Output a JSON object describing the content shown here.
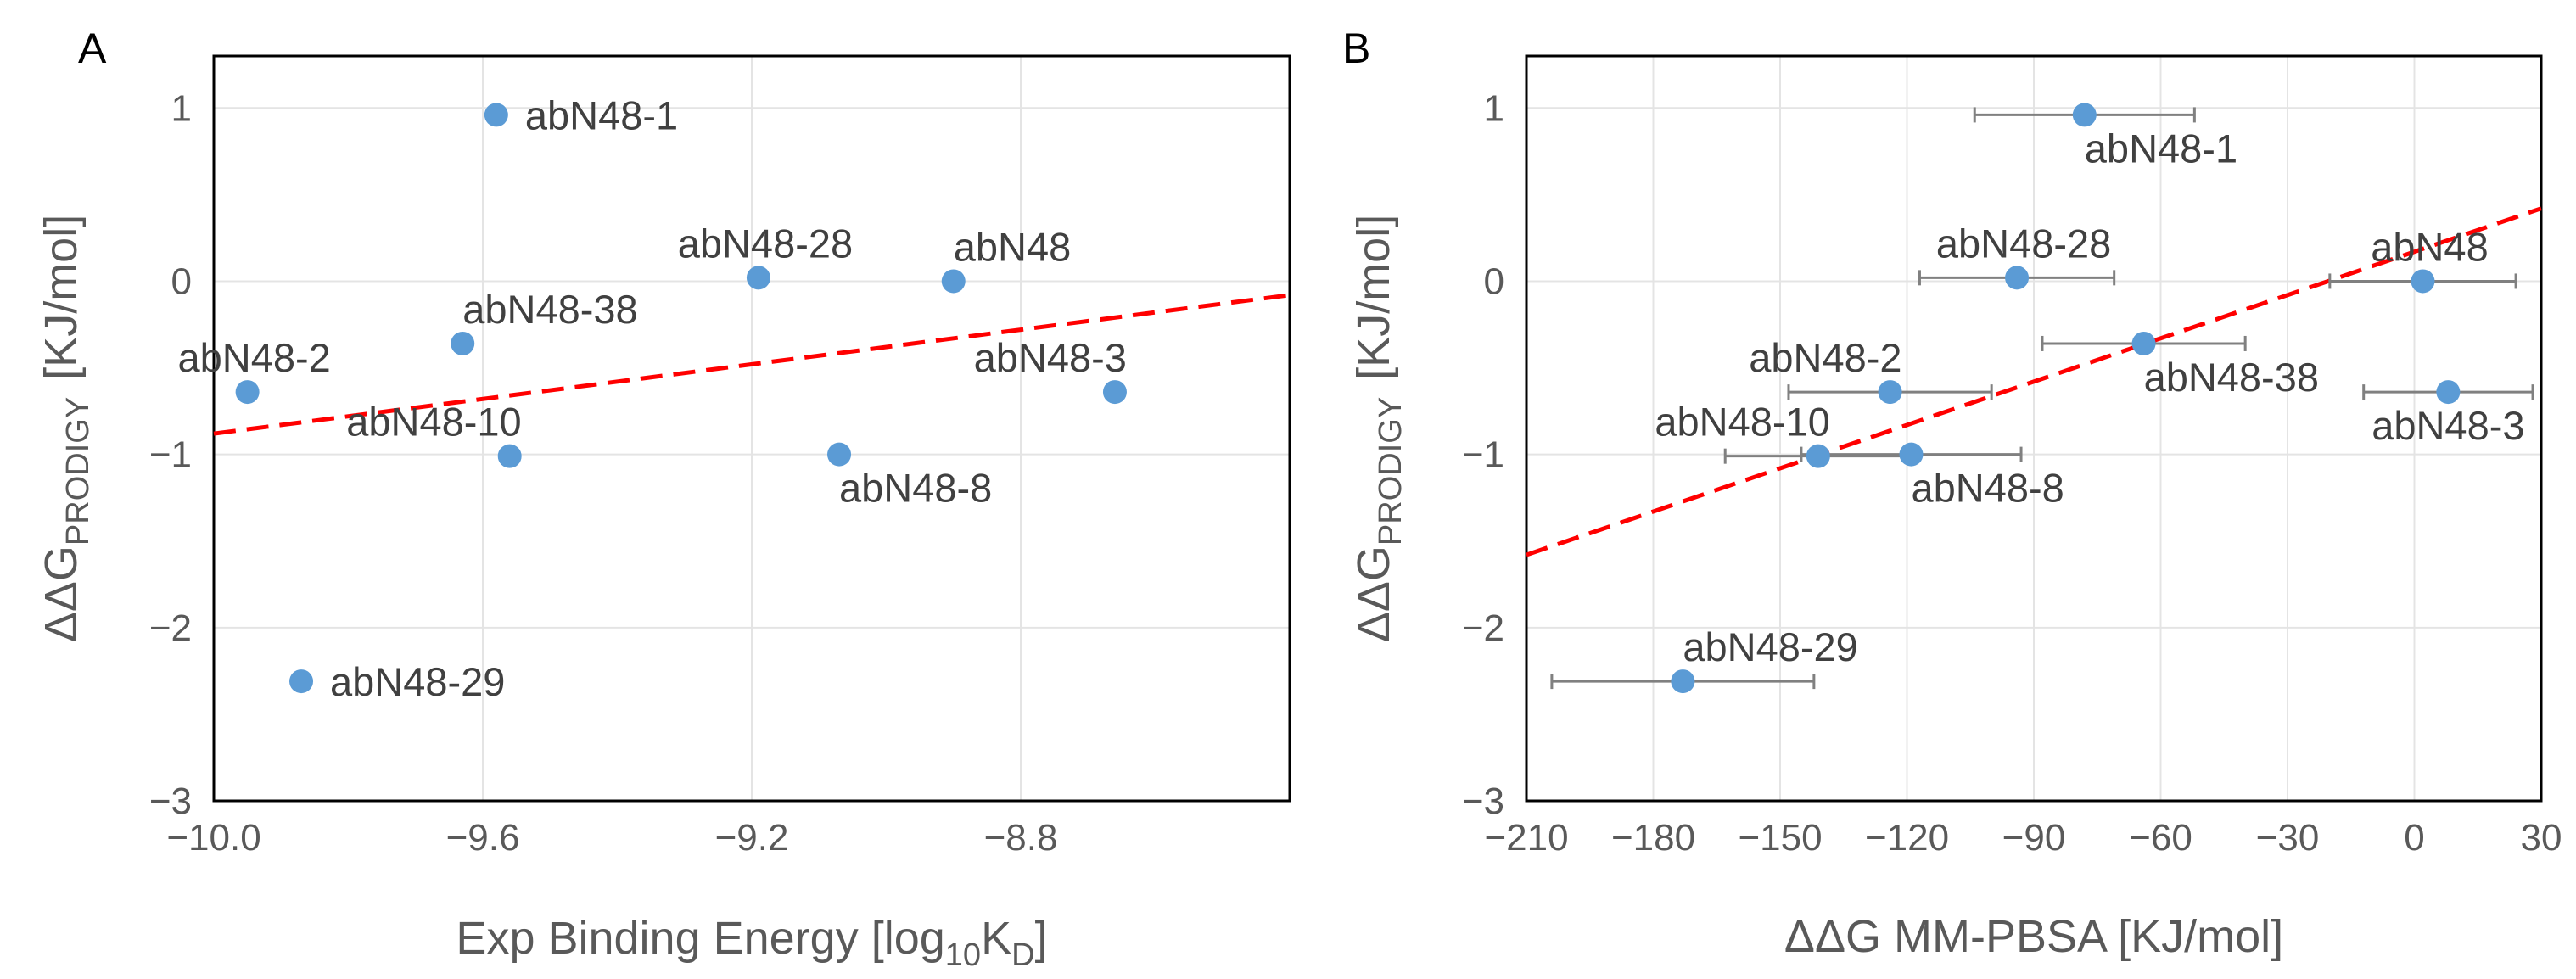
{
  "chart_data": [
    {
      "panel": "A",
      "type": "scatter",
      "xlabel": "Exp Binding Energy [log10KD]",
      "xlabel_parts": {
        "main": "Exp Binding Energy [log",
        "sub1": "10",
        "mid": "K",
        "sub2": "D",
        "end": "]"
      },
      "ylabel": "ΔΔGPRODIGY [KJ/mol]",
      "ylabel_parts": {
        "main": "ΔΔG",
        "sub": "PRODIGY",
        "unit": "[KJ/mol]"
      },
      "xlim": [
        -10.0,
        -8.4
      ],
      "ylim": [
        -3,
        1.3
      ],
      "xticks": [
        -10.0,
        -9.6,
        -9.2,
        -8.8
      ],
      "xtick_labels": [
        "−10.0",
        "−9.6",
        "−9.2",
        "−8.8"
      ],
      "yticks": [
        -3,
        -2,
        -1,
        0,
        1
      ],
      "ytick_labels": [
        "−3",
        "−2",
        "−1",
        "0",
        "1"
      ],
      "grid": true,
      "points": [
        {
          "label": "abN48-1",
          "x": -9.58,
          "y": 0.96,
          "label_pos": "right"
        },
        {
          "label": "abN48-28",
          "x": -9.19,
          "y": 0.02,
          "label_pos": "above"
        },
        {
          "label": "abN48",
          "x": -8.9,
          "y": 0.0,
          "label_pos": "above-right"
        },
        {
          "label": "abN48-38",
          "x": -9.63,
          "y": -0.36,
          "label_pos": "above-right"
        },
        {
          "label": "abN48-2",
          "x": -9.95,
          "y": -0.64,
          "label_pos": "above"
        },
        {
          "label": "abN48-3",
          "x": -8.66,
          "y": -0.64,
          "label_pos": "above-left"
        },
        {
          "label": "abN48-10",
          "x": -9.56,
          "y": -1.01,
          "label_pos": "above-left"
        },
        {
          "label": "abN48-8",
          "x": -9.07,
          "y": -1.0,
          "label_pos": "below-right"
        },
        {
          "label": "abN48-29",
          "x": -9.87,
          "y": -2.31,
          "label_pos": "right"
        }
      ],
      "trendline": {
        "style": "dashed",
        "color": "#ff0000",
        "from": [
          -10.0,
          -0.88
        ],
        "to": [
          -8.4,
          -0.08
        ]
      },
      "marker_color": "#5b9bd5"
    },
    {
      "panel": "B",
      "type": "scatter",
      "xlabel": "ΔΔG MM-PBSA [KJ/mol]",
      "ylabel": "ΔΔGPRODIGY [KJ/mol]",
      "ylabel_parts": {
        "main": "ΔΔG",
        "sub": "PRODIGY",
        "unit": "[KJ/mol]"
      },
      "xlim": [
        -210,
        30
      ],
      "ylim": [
        -3,
        1.3
      ],
      "xticks": [
        -210,
        -180,
        -150,
        -120,
        -90,
        -60,
        -30,
        0,
        30
      ],
      "xtick_labels": [
        "−210",
        "−180",
        "−150",
        "−120",
        "−90",
        "−60",
        "−30",
        "0",
        "30"
      ],
      "yticks": [
        -3,
        -2,
        -1,
        0,
        1
      ],
      "ytick_labels": [
        "−3",
        "−2",
        "−1",
        "0",
        "1"
      ],
      "grid": true,
      "points": [
        {
          "label": "abN48-1",
          "x": -78,
          "y": 0.96,
          "xerr": 26,
          "label_pos": "below-right"
        },
        {
          "label": "abN48-28",
          "x": -94,
          "y": 0.02,
          "xerr": 23,
          "label_pos": "above"
        },
        {
          "label": "abN48",
          "x": 2,
          "y": 0.0,
          "xerr": 22,
          "label_pos": "above"
        },
        {
          "label": "abN48-38",
          "x": -64,
          "y": -0.36,
          "xerr": 24,
          "label_pos": "below-right"
        },
        {
          "label": "abN48-2",
          "x": -124,
          "y": -0.64,
          "xerr": 24,
          "label_pos": "above-left"
        },
        {
          "label": "abN48-3",
          "x": 8,
          "y": -0.64,
          "xerr": 20,
          "label_pos": "below"
        },
        {
          "label": "abN48-10",
          "x": -141,
          "y": -1.01,
          "xerr": 22,
          "label_pos": "above-left"
        },
        {
          "label": "abN48-8",
          "x": -119,
          "y": -1.0,
          "xerr": 26,
          "label_pos": "below-right"
        },
        {
          "label": "abN48-29",
          "x": -173,
          "y": -2.31,
          "xerr": 31,
          "label_pos": "above-right"
        }
      ],
      "trendline": {
        "style": "dashed",
        "color": "#ff0000",
        "from": [
          -210,
          -1.58
        ],
        "to": [
          30,
          0.42
        ]
      },
      "marker_color": "#5b9bd5"
    }
  ]
}
